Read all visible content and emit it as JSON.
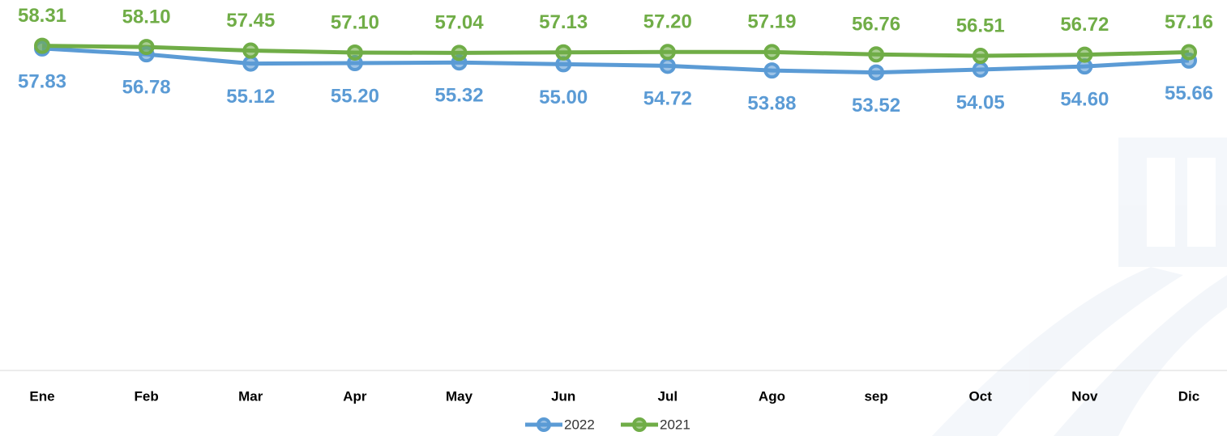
{
  "chart_data": {
    "type": "line",
    "categories": [
      "Ene",
      "Feb",
      "Mar",
      "Apr",
      "May",
      "Jun",
      "Jul",
      "Ago",
      "sep",
      "Oct",
      "Nov",
      "Dic"
    ],
    "ylim": [
      0,
      60
    ],
    "series": [
      {
        "name": "2022",
        "color": "#5b9bd5",
        "values": [
          57.83,
          56.78,
          55.12,
          55.2,
          55.32,
          55.0,
          54.72,
          53.88,
          53.52,
          54.05,
          54.6,
          55.66
        ],
        "value_labels": [
          "57.83",
          "56.78",
          "55.12",
          "55.20",
          "55.32",
          "55.00",
          "54.72",
          "53.88",
          "53.52",
          "54.05",
          "54.60",
          "55.66"
        ]
      },
      {
        "name": "2021",
        "color": "#70ad47",
        "values": [
          58.31,
          58.1,
          57.45,
          57.1,
          57.04,
          57.13,
          57.2,
          57.19,
          56.76,
          56.51,
          56.72,
          57.16
        ],
        "value_labels": [
          "58.31",
          "58.10",
          "57.45",
          "57.10",
          "57.04",
          "57.13",
          "57.20",
          "57.19",
          "56.76",
          "56.51",
          "56.72",
          "57.16"
        ]
      }
    ]
  }
}
